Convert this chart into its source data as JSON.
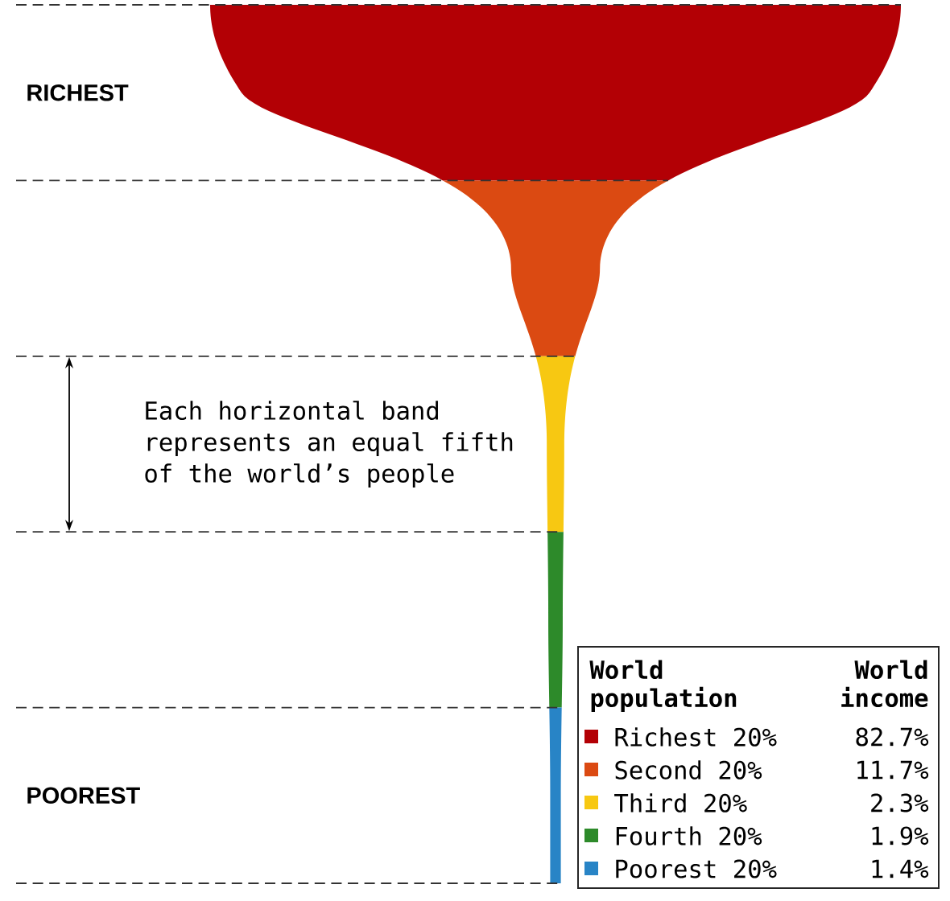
{
  "chart_data": {
    "type": "other",
    "categories": [
      "Richest 20%",
      "Second 20%",
      "Third 20%",
      "Fourth 20%",
      "Poorest 20%"
    ],
    "values": [
      82.7,
      11.7,
      2.3,
      1.9,
      1.4
    ],
    "value_labels": [
      "82.7%",
      "11.7%",
      "2.3%",
      "1.9%",
      "1.4%"
    ],
    "colors": [
      "#b30005",
      "#db4a12",
      "#f7c812",
      "#2d8a2a",
      "#2884c6"
    ],
    "legend_title": "World population",
    "annotations": [
      "RICHEST",
      "POOREST",
      "Each horizontal band represents an equal fifth of the world’s people",
      "World income"
    ]
  }
}
